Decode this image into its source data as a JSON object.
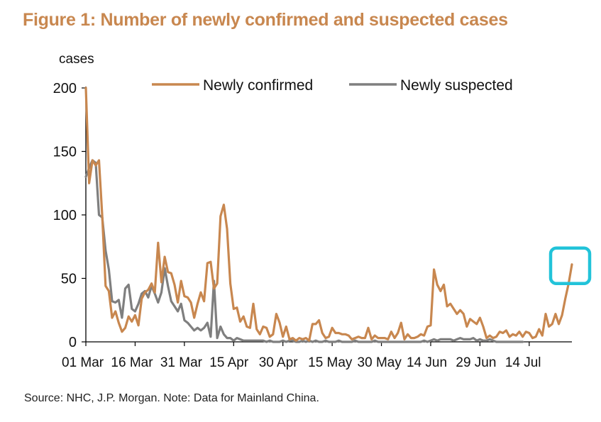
{
  "title": "Figure 1: Number of newly confirmed and suspected cases",
  "source": "Source: NHC, J.P. Morgan. Note: Data for Mainland China.",
  "colors": {
    "confirmed": "#c8874f",
    "suspected": "#7f7f7f",
    "highlight": "#22c3d9",
    "title": "#c8874f"
  },
  "chart_data": {
    "type": "line",
    "ylabel": "cases",
    "ylim": [
      0,
      200
    ],
    "yticks": [
      0,
      50,
      100,
      150,
      200
    ],
    "xlim": [
      "2020-03-01",
      "2020-07-27"
    ],
    "xtick_labels": [
      "01 Mar",
      "16 Mar",
      "31 Mar",
      "15 Apr",
      "30 Apr",
      "15 May",
      "30 May",
      "14 Jun",
      "29 Jun",
      "14 Jul"
    ],
    "xtick_dates": [
      "2020-03-01",
      "2020-03-16",
      "2020-03-31",
      "2020-04-15",
      "2020-04-30",
      "2020-05-15",
      "2020-05-30",
      "2020-06-14",
      "2020-06-29",
      "2020-07-14"
    ],
    "legend": {
      "position": "top",
      "entries": [
        "Newly confirmed",
        "Newly suspected"
      ]
    },
    "highlight": {
      "series": "Newly confirmed",
      "date": "2020-07-27",
      "value": 61
    },
    "series": [
      {
        "name": "Newly confirmed",
        "points": [
          [
            "2020-03-01",
            200
          ],
          [
            "2020-03-02",
            125
          ],
          [
            "2020-03-03",
            143
          ],
          [
            "2020-03-04",
            139
          ],
          [
            "2020-03-05",
            143
          ],
          [
            "2020-03-06",
            99
          ],
          [
            "2020-03-07",
            44
          ],
          [
            "2020-03-08",
            40
          ],
          [
            "2020-03-09",
            19
          ],
          [
            "2020-03-10",
            24
          ],
          [
            "2020-03-11",
            15
          ],
          [
            "2020-03-12",
            8
          ],
          [
            "2020-03-13",
            11
          ],
          [
            "2020-03-14",
            20
          ],
          [
            "2020-03-15",
            16
          ],
          [
            "2020-03-16",
            21
          ],
          [
            "2020-03-17",
            13
          ],
          [
            "2020-03-18",
            34
          ],
          [
            "2020-03-19",
            39
          ],
          [
            "2020-03-20",
            41
          ],
          [
            "2020-03-21",
            46
          ],
          [
            "2020-03-22",
            39
          ],
          [
            "2020-03-23",
            78
          ],
          [
            "2020-03-24",
            47
          ],
          [
            "2020-03-25",
            67
          ],
          [
            "2020-03-26",
            55
          ],
          [
            "2020-03-27",
            54
          ],
          [
            "2020-03-28",
            45
          ],
          [
            "2020-03-29",
            31
          ],
          [
            "2020-03-30",
            48
          ],
          [
            "2020-03-31",
            36
          ],
          [
            "2020-04-01",
            35
          ],
          [
            "2020-04-02",
            31
          ],
          [
            "2020-04-03",
            19
          ],
          [
            "2020-04-04",
            30
          ],
          [
            "2020-04-05",
            39
          ],
          [
            "2020-04-06",
            32
          ],
          [
            "2020-04-07",
            62
          ],
          [
            "2020-04-08",
            63
          ],
          [
            "2020-04-09",
            42
          ],
          [
            "2020-04-10",
            46
          ],
          [
            "2020-04-11",
            99
          ],
          [
            "2020-04-12",
            108
          ],
          [
            "2020-04-13",
            89
          ],
          [
            "2020-04-14",
            46
          ],
          [
            "2020-04-15",
            26
          ],
          [
            "2020-04-16",
            27
          ],
          [
            "2020-04-17",
            16
          ],
          [
            "2020-04-18",
            20
          ],
          [
            "2020-04-19",
            12
          ],
          [
            "2020-04-20",
            11
          ],
          [
            "2020-04-21",
            30
          ],
          [
            "2020-04-22",
            10
          ],
          [
            "2020-04-23",
            6
          ],
          [
            "2020-04-24",
            12
          ],
          [
            "2020-04-25",
            11
          ],
          [
            "2020-04-26",
            4
          ],
          [
            "2020-04-27",
            6
          ],
          [
            "2020-04-28",
            22
          ],
          [
            "2020-04-29",
            15
          ],
          [
            "2020-04-30",
            4
          ],
          [
            "2020-05-01",
            12
          ],
          [
            "2020-05-02",
            2
          ],
          [
            "2020-05-03",
            3
          ],
          [
            "2020-05-04",
            1
          ],
          [
            "2020-05-05",
            3
          ],
          [
            "2020-05-06",
            2
          ],
          [
            "2020-05-07",
            3
          ],
          [
            "2020-05-08",
            1
          ],
          [
            "2020-05-09",
            14
          ],
          [
            "2020-05-10",
            14
          ],
          [
            "2020-05-11",
            17
          ],
          [
            "2020-05-12",
            7
          ],
          [
            "2020-05-13",
            3
          ],
          [
            "2020-05-14",
            4
          ],
          [
            "2020-05-15",
            11
          ],
          [
            "2020-05-16",
            7
          ],
          [
            "2020-05-17",
            7
          ],
          [
            "2020-05-18",
            6
          ],
          [
            "2020-05-19",
            6
          ],
          [
            "2020-05-20",
            5
          ],
          [
            "2020-05-21",
            2
          ],
          [
            "2020-05-22",
            3
          ],
          [
            "2020-05-23",
            4
          ],
          [
            "2020-05-24",
            3
          ],
          [
            "2020-05-25",
            3
          ],
          [
            "2020-05-26",
            11
          ],
          [
            "2020-05-27",
            2
          ],
          [
            "2020-05-28",
            5
          ],
          [
            "2020-05-29",
            3
          ],
          [
            "2020-05-30",
            3
          ],
          [
            "2020-05-31",
            3
          ],
          [
            "2020-06-01",
            2
          ],
          [
            "2020-06-02",
            8
          ],
          [
            "2020-06-03",
            3
          ],
          [
            "2020-06-04",
            7
          ],
          [
            "2020-06-05",
            15
          ],
          [
            "2020-06-06",
            2
          ],
          [
            "2020-06-07",
            6
          ],
          [
            "2020-06-08",
            3
          ],
          [
            "2020-06-09",
            3
          ],
          [
            "2020-06-10",
            4
          ],
          [
            "2020-06-11",
            6
          ],
          [
            "2020-06-12",
            5
          ],
          [
            "2020-06-13",
            12
          ],
          [
            "2020-06-14",
            13
          ],
          [
            "2020-06-15",
            57
          ],
          [
            "2020-06-16",
            45
          ],
          [
            "2020-06-17",
            40
          ],
          [
            "2020-06-18",
            45
          ],
          [
            "2020-06-19",
            28
          ],
          [
            "2020-06-20",
            30
          ],
          [
            "2020-06-21",
            26
          ],
          [
            "2020-06-22",
            22
          ],
          [
            "2020-06-23",
            25
          ],
          [
            "2020-06-24",
            22
          ],
          [
            "2020-06-25",
            12
          ],
          [
            "2020-06-26",
            18
          ],
          [
            "2020-06-27",
            16
          ],
          [
            "2020-06-28",
            14
          ],
          [
            "2020-06-29",
            19
          ],
          [
            "2020-06-30",
            12
          ],
          [
            "2020-07-01",
            3
          ],
          [
            "2020-07-02",
            5
          ],
          [
            "2020-07-03",
            3
          ],
          [
            "2020-07-04",
            4
          ],
          [
            "2020-07-05",
            8
          ],
          [
            "2020-07-06",
            7
          ],
          [
            "2020-07-07",
            9
          ],
          [
            "2020-07-08",
            4
          ],
          [
            "2020-07-09",
            6
          ],
          [
            "2020-07-10",
            5
          ],
          [
            "2020-07-11",
            8
          ],
          [
            "2020-07-12",
            4
          ],
          [
            "2020-07-13",
            8
          ],
          [
            "2020-07-14",
            7
          ],
          [
            "2020-07-15",
            3
          ],
          [
            "2020-07-16",
            4
          ],
          [
            "2020-07-17",
            10
          ],
          [
            "2020-07-18",
            5
          ],
          [
            "2020-07-19",
            22
          ],
          [
            "2020-07-20",
            12
          ],
          [
            "2020-07-21",
            14
          ],
          [
            "2020-07-22",
            22
          ],
          [
            "2020-07-23",
            14
          ],
          [
            "2020-07-24",
            21
          ],
          [
            "2020-07-25",
            34
          ],
          [
            "2020-07-26",
            46
          ],
          [
            "2020-07-27",
            61
          ]
        ]
      },
      {
        "name": "Newly suspected",
        "points": [
          [
            "2020-03-01",
            130
          ],
          [
            "2020-03-02",
            137
          ],
          [
            "2020-03-03",
            143
          ],
          [
            "2020-03-04",
            141
          ],
          [
            "2020-03-05",
            100
          ],
          [
            "2020-03-06",
            98
          ],
          [
            "2020-03-07",
            72
          ],
          [
            "2020-03-08",
            57
          ],
          [
            "2020-03-09",
            32
          ],
          [
            "2020-03-10",
            31
          ],
          [
            "2020-03-11",
            33
          ],
          [
            "2020-03-12",
            19
          ],
          [
            "2020-03-13",
            42
          ],
          [
            "2020-03-14",
            45
          ],
          [
            "2020-03-15",
            26
          ],
          [
            "2020-03-16",
            24
          ],
          [
            "2020-03-17",
            30
          ],
          [
            "2020-03-18",
            38
          ],
          [
            "2020-03-19",
            40
          ],
          [
            "2020-03-20",
            35
          ],
          [
            "2020-03-21",
            44
          ],
          [
            "2020-03-22",
            38
          ],
          [
            "2020-03-23",
            31
          ],
          [
            "2020-03-24",
            39
          ],
          [
            "2020-03-25",
            58
          ],
          [
            "2020-03-26",
            44
          ],
          [
            "2020-03-27",
            32
          ],
          [
            "2020-03-28",
            28
          ],
          [
            "2020-03-29",
            24
          ],
          [
            "2020-03-30",
            30
          ],
          [
            "2020-03-31",
            17
          ],
          [
            "2020-04-01",
            15
          ],
          [
            "2020-04-02",
            12
          ],
          [
            "2020-04-03",
            9
          ],
          [
            "2020-04-04",
            11
          ],
          [
            "2020-04-05",
            9
          ],
          [
            "2020-04-06",
            11
          ],
          [
            "2020-04-07",
            15
          ],
          [
            "2020-04-08",
            4
          ],
          [
            "2020-04-09",
            48
          ],
          [
            "2020-04-10",
            3
          ],
          [
            "2020-04-11",
            12
          ],
          [
            "2020-04-12",
            6
          ],
          [
            "2020-04-13",
            3
          ],
          [
            "2020-04-14",
            3
          ],
          [
            "2020-04-15",
            1
          ],
          [
            "2020-04-16",
            3
          ],
          [
            "2020-04-17",
            2
          ],
          [
            "2020-04-18",
            1
          ],
          [
            "2020-04-19",
            1
          ],
          [
            "2020-04-20",
            1
          ],
          [
            "2020-04-21",
            1
          ],
          [
            "2020-04-22",
            1
          ],
          [
            "2020-04-23",
            1
          ],
          [
            "2020-04-24",
            1
          ],
          [
            "2020-04-25",
            0
          ],
          [
            "2020-04-26",
            1
          ],
          [
            "2020-04-27",
            0
          ],
          [
            "2020-04-28",
            0
          ],
          [
            "2020-04-29",
            0
          ],
          [
            "2020-04-30",
            1
          ],
          [
            "2020-05-01",
            0
          ],
          [
            "2020-05-02",
            1
          ],
          [
            "2020-05-03",
            1
          ],
          [
            "2020-05-04",
            0
          ],
          [
            "2020-05-05",
            0
          ],
          [
            "2020-05-06",
            1
          ],
          [
            "2020-05-07",
            0
          ],
          [
            "2020-05-08",
            1
          ],
          [
            "2020-05-09",
            0
          ],
          [
            "2020-05-10",
            1
          ],
          [
            "2020-05-11",
            0
          ],
          [
            "2020-05-12",
            0
          ],
          [
            "2020-05-13",
            1
          ],
          [
            "2020-05-14",
            0
          ],
          [
            "2020-05-15",
            0
          ],
          [
            "2020-05-16",
            0
          ],
          [
            "2020-05-17",
            1
          ],
          [
            "2020-05-18",
            0
          ],
          [
            "2020-05-19",
            0
          ],
          [
            "2020-05-20",
            0
          ],
          [
            "2020-05-21",
            0
          ],
          [
            "2020-05-22",
            1
          ],
          [
            "2020-05-23",
            0
          ],
          [
            "2020-05-24",
            0
          ],
          [
            "2020-05-25",
            0
          ],
          [
            "2020-05-26",
            0
          ],
          [
            "2020-05-27",
            0
          ],
          [
            "2020-05-28",
            1
          ],
          [
            "2020-05-29",
            0
          ],
          [
            "2020-05-30",
            0
          ],
          [
            "2020-05-31",
            0
          ],
          [
            "2020-06-01",
            0
          ],
          [
            "2020-06-02",
            0
          ],
          [
            "2020-06-03",
            0
          ],
          [
            "2020-06-04",
            0
          ],
          [
            "2020-06-05",
            0
          ],
          [
            "2020-06-06",
            0
          ],
          [
            "2020-06-07",
            0
          ],
          [
            "2020-06-08",
            0
          ],
          [
            "2020-06-09",
            0
          ],
          [
            "2020-06-10",
            0
          ],
          [
            "2020-06-11",
            0
          ],
          [
            "2020-06-12",
            1
          ],
          [
            "2020-06-13",
            0
          ],
          [
            "2020-06-14",
            1
          ],
          [
            "2020-06-15",
            2
          ],
          [
            "2020-06-16",
            1
          ],
          [
            "2020-06-17",
            2
          ],
          [
            "2020-06-18",
            2
          ],
          [
            "2020-06-19",
            2
          ],
          [
            "2020-06-20",
            2
          ],
          [
            "2020-06-21",
            1
          ],
          [
            "2020-06-22",
            2
          ],
          [
            "2020-06-23",
            3
          ],
          [
            "2020-06-24",
            2
          ],
          [
            "2020-06-25",
            2
          ],
          [
            "2020-06-26",
            2
          ],
          [
            "2020-06-27",
            3
          ],
          [
            "2020-06-28",
            1
          ],
          [
            "2020-06-29",
            2
          ],
          [
            "2020-06-30",
            1
          ],
          [
            "2020-07-01",
            1
          ],
          [
            "2020-07-02",
            2
          ],
          [
            "2020-07-03",
            1
          ],
          [
            "2020-07-04",
            0
          ],
          [
            "2020-07-05",
            0
          ],
          [
            "2020-07-06",
            0
          ],
          [
            "2020-07-07",
            0
          ],
          [
            "2020-07-08",
            0
          ],
          [
            "2020-07-09",
            0
          ],
          [
            "2020-07-10",
            0
          ],
          [
            "2020-07-11",
            0
          ],
          [
            "2020-07-12",
            0
          ]
        ]
      }
    ]
  }
}
